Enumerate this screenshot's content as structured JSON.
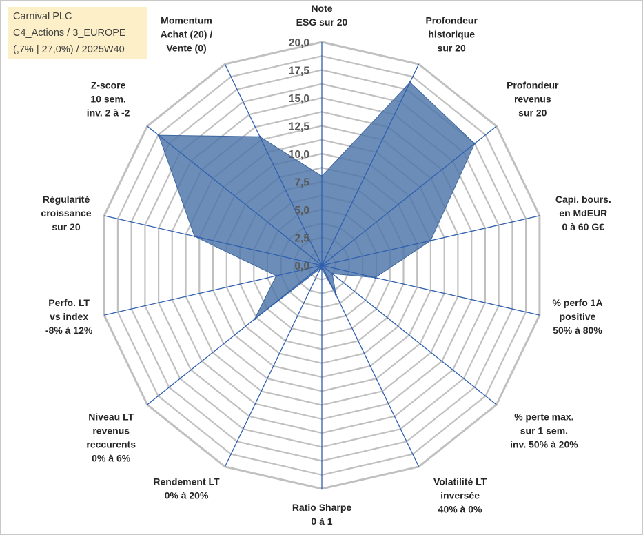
{
  "title": {
    "line1": "Carnival PLC",
    "line2": "C4_Actions / 3_EUROPE",
    "line3": "(,7% | 27,0%) / 2025W40"
  },
  "colors": {
    "grid": "#c0c0c0",
    "spoke": "#2f5fae",
    "fill": "#4a74a8",
    "title_bg": "#fdf0c8"
  },
  "chart_data": {
    "type": "radar",
    "title": "Carnival PLC",
    "rmax": 20,
    "ticks": [
      "0,0",
      "2,5",
      "5,0",
      "7,5",
      "10,0",
      "12,5",
      "15,0",
      "17,5",
      "20,0"
    ],
    "tick_values": [
      0,
      2.5,
      5,
      7.5,
      10,
      12.5,
      15,
      17.5,
      20
    ],
    "axes": [
      {
        "label": [
          "Note",
          "ESG sur 20"
        ],
        "value": 8.0
      },
      {
        "label": [
          "Profondeur",
          "historique",
          "sur 20"
        ],
        "value": 18.2
      },
      {
        "label": [
          "Profondeur",
          "revenus",
          "sur 20"
        ],
        "value": 17.5
      },
      {
        "label": [
          "Capi. bours.",
          "en MdEUR",
          "0 à 60 G€"
        ],
        "value": 10.0
      },
      {
        "label": [
          "% perfo 1A",
          "positive",
          "50% à 80%"
        ],
        "value": 4.9
      },
      {
        "label": [
          "% perte max.",
          "sur 1 sem.",
          "inv. 50% à 20%"
        ],
        "value": 1.2
      },
      {
        "label": [
          "Volatilité LT",
          "inversée",
          "40% à 0%"
        ],
        "value": 2.9
      },
      {
        "label": [
          "Ratio Sharpe",
          "0 à 1"
        ],
        "value": 0.3
      },
      {
        "label": [
          "Rendement LT",
          "0% à 20%"
        ],
        "value": 0.3
      },
      {
        "label": [
          "Niveau LT",
          "revenus",
          "reccurents",
          "0% à 6%"
        ],
        "value": 7.7
      },
      {
        "label": [
          "Perfo. LT",
          "vs index",
          "-8% à 12%"
        ],
        "value": 4.2
      },
      {
        "label": [
          "Régularité",
          "croissance",
          "sur 20"
        ],
        "value": 11.7
      },
      {
        "label": [
          "Z-score",
          "10 sem.",
          "inv. 2 à -2"
        ],
        "value": 18.7
      },
      {
        "label": [
          "Momentum",
          "Achat (20) /",
          "Vente (0)"
        ],
        "value": 12.8
      }
    ]
  }
}
